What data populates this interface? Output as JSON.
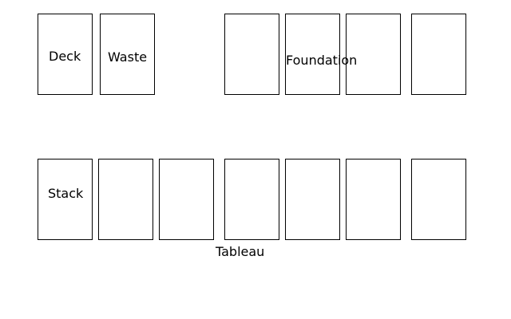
{
  "stock": {
    "deck_label": "Deck",
    "waste_label": "Waste"
  },
  "foundation": {
    "label": "Foundation",
    "pile_count": 4
  },
  "tableau": {
    "label": "Tableau",
    "stack_label": "Stack",
    "pile_count": 7
  }
}
